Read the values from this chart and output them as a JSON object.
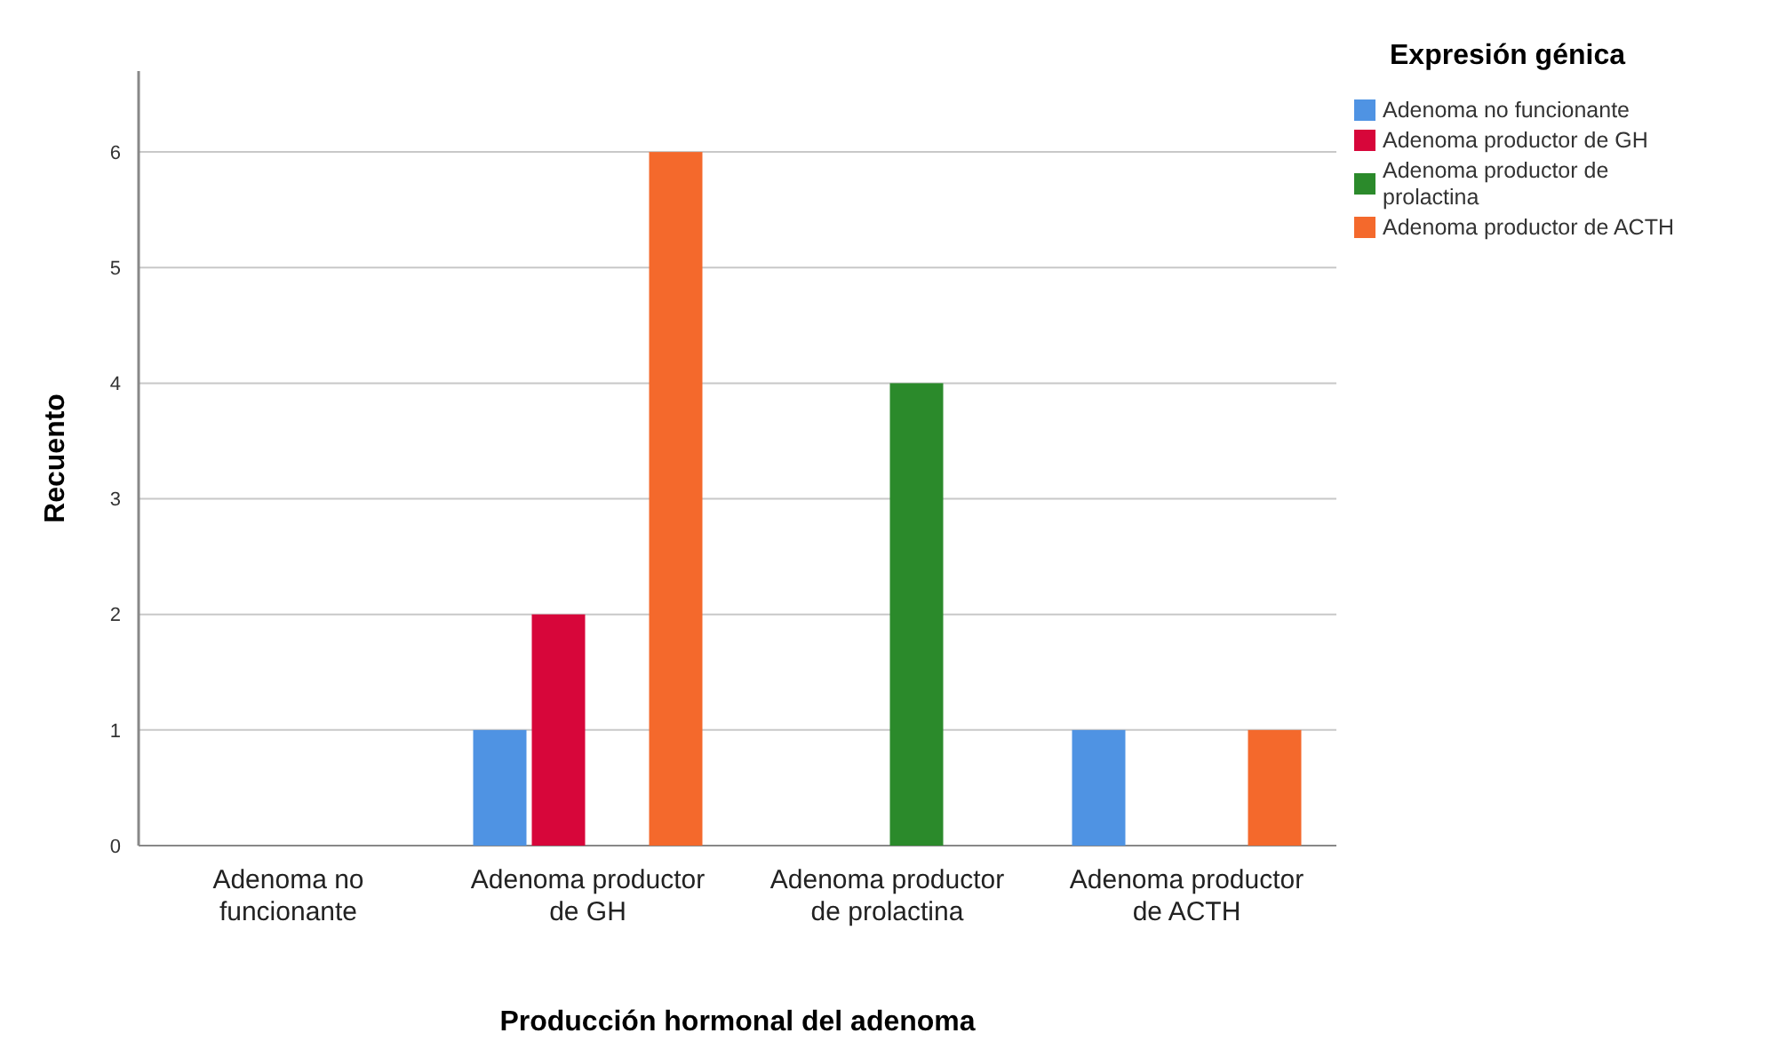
{
  "chart_data": {
    "type": "bar",
    "xlabel": "Producción hormonal del adenoma",
    "ylabel": "Recuento",
    "legend_title": "Expresión génica",
    "legend": "top right",
    "grid": "y",
    "categories": [
      "Adenoma no funcionante",
      "Adenoma productor de GH",
      "Adenoma productor de prolactina",
      "Adenoma productor de ACTH"
    ],
    "ylim": [
      0,
      6.7
    ],
    "yticks": [
      0,
      1,
      2,
      3,
      4,
      5,
      6
    ],
    "series": [
      {
        "name": "Adenoma no funcionante",
        "color": "#4f93e3",
        "values": [
          0,
          1,
          0,
          1
        ]
      },
      {
        "name": "Adenoma productor de GH",
        "color": "#d7063a",
        "values": [
          0,
          2,
          0,
          0
        ]
      },
      {
        "name": "Adenoma productor de prolactina",
        "color": "#2b8a2b",
        "values": [
          0,
          0,
          4,
          0
        ]
      },
      {
        "name": "Adenoma productor de ACTH",
        "color": "#f4692c",
        "values": [
          0,
          6,
          0,
          1
        ]
      }
    ]
  }
}
